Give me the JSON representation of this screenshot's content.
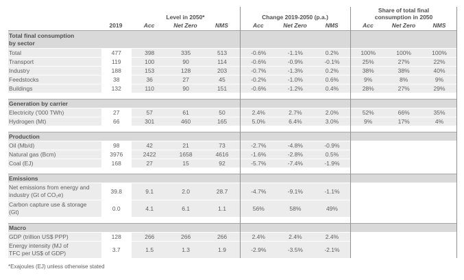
{
  "header": {
    "col2019": "2019",
    "groups": [
      {
        "title": "Level in 2050*",
        "cols": [
          "Acc",
          "Net Zero",
          "NMS"
        ]
      },
      {
        "title": "Change 2019-2050 (p.a.)",
        "cols": [
          "Acc",
          "Net Zero",
          "NMS"
        ]
      },
      {
        "title": "Share of total final\nconsumption in 2050",
        "cols": [
          "Acc",
          "Net Zero",
          "NMS"
        ]
      }
    ]
  },
  "sections": [
    {
      "title": "Total final consumption\nby sector",
      "rows": [
        {
          "label": "Total",
          "v2019": "477",
          "level": [
            "398",
            "335",
            "513"
          ],
          "change": [
            "-0.6%",
            "-1.1%",
            "0.2%"
          ],
          "share": [
            "100%",
            "100%",
            "100%"
          ]
        },
        {
          "label": "Transport",
          "v2019": "119",
          "level": [
            "100",
            "90",
            "114"
          ],
          "change": [
            "-0.6%",
            "-0.9%",
            "-0.1%"
          ],
          "share": [
            "25%",
            "27%",
            "22%"
          ]
        },
        {
          "label": "Industry",
          "v2019": "188",
          "level": [
            "153",
            "128",
            "203"
          ],
          "change": [
            "-0.7%",
            "-1.3%",
            "0.2%"
          ],
          "share": [
            "38%",
            "38%",
            "40%"
          ]
        },
        {
          "label": "Feedstocks",
          "v2019": "38",
          "level": [
            "36",
            "27",
            "45"
          ],
          "change": [
            "-0.2%",
            "-1.0%",
            "0.6%"
          ],
          "share": [
            "9%",
            "8%",
            "9%"
          ]
        },
        {
          "label": "Buildings",
          "v2019": "132",
          "level": [
            "110",
            "90",
            "151"
          ],
          "change": [
            "-0.6%",
            "-1.2%",
            "0.4%"
          ],
          "share": [
            "28%",
            "27%",
            "29%"
          ]
        }
      ]
    },
    {
      "title": "Generation by carrier",
      "rows": [
        {
          "label": "Electricity ('000 TWh)",
          "v2019": "27",
          "level": [
            "57",
            "61",
            "50"
          ],
          "change": [
            "2.4%",
            "2.7%",
            "2.0%"
          ],
          "share": [
            "52%",
            "66%",
            "35%"
          ]
        },
        {
          "label": "Hydrogen (Mt)",
          "v2019": "66",
          "level": [
            "301",
            "460",
            "165"
          ],
          "change": [
            "5.0%",
            "6.4%",
            "3.0%"
          ],
          "share": [
            "9%",
            "17%",
            "4%"
          ]
        }
      ]
    },
    {
      "title": "Production",
      "rows": [
        {
          "label": "Oil (Mb/d)",
          "v2019": "98",
          "level": [
            "42",
            "21",
            "73"
          ],
          "change": [
            "-2.7%",
            "-4.8%",
            "-0.9%"
          ],
          "share": [
            "",
            "",
            ""
          ]
        },
        {
          "label": "Natural gas (Bcm)",
          "v2019": "3976",
          "level": [
            "2422",
            "1658",
            "4616"
          ],
          "change": [
            "-1.6%",
            "-2.8%",
            "0.5%"
          ],
          "share": [
            "",
            "",
            ""
          ]
        },
        {
          "label": "Coal (EJ)",
          "v2019": "168",
          "level": [
            "27",
            "15",
            "92"
          ],
          "change": [
            "-5.7%",
            "-7.4%",
            "-1.9%"
          ],
          "share": [
            "",
            "",
            ""
          ]
        }
      ]
    },
    {
      "title": "Emissions",
      "rows": [
        {
          "label": "Net emissions from energy and\nindustry (Gt of CO₂e)",
          "v2019": "39.8",
          "level": [
            "9.1",
            "2.0",
            "28.7"
          ],
          "change": [
            "-4.7%",
            "-9.1%",
            "-1.1%"
          ],
          "share": [
            "",
            "",
            ""
          ],
          "tall": true
        },
        {
          "label": "Carbon capture use & storage\n(Gt)",
          "v2019": "0.0",
          "level": [
            "4.1",
            "6.1",
            "1.1"
          ],
          "change": [
            "56%",
            "58%",
            "49%"
          ],
          "share": [
            "",
            "",
            ""
          ],
          "tall": true
        }
      ]
    },
    {
      "title": "Macro",
      "rows": [
        {
          "label": "GDP (trillion US$ PPP)",
          "v2019": "128",
          "level": [
            "266",
            "266",
            "266"
          ],
          "change": [
            "2.4%",
            "2.4%",
            "2.4%"
          ],
          "share": [
            "",
            "",
            ""
          ]
        },
        {
          "label": "Energy intensity (MJ of\nTFC per US$ of GDP)",
          "v2019": "3.7",
          "level": [
            "1.5",
            "1.3",
            "1.9"
          ],
          "change": [
            "-2.9%",
            "-3.5%",
            "-2.1%"
          ],
          "share": [
            "",
            "",
            ""
          ],
          "tall": true
        }
      ]
    }
  ],
  "footnote": "*Exajoules (EJ) unless otherwise stated",
  "colors": {
    "section_band": "#d9d9d9",
    "row_shade": "#ececec",
    "band_top_border": "#a6a6a6",
    "divider_line": "#8f8f8f",
    "text": "#5e5e5e"
  }
}
